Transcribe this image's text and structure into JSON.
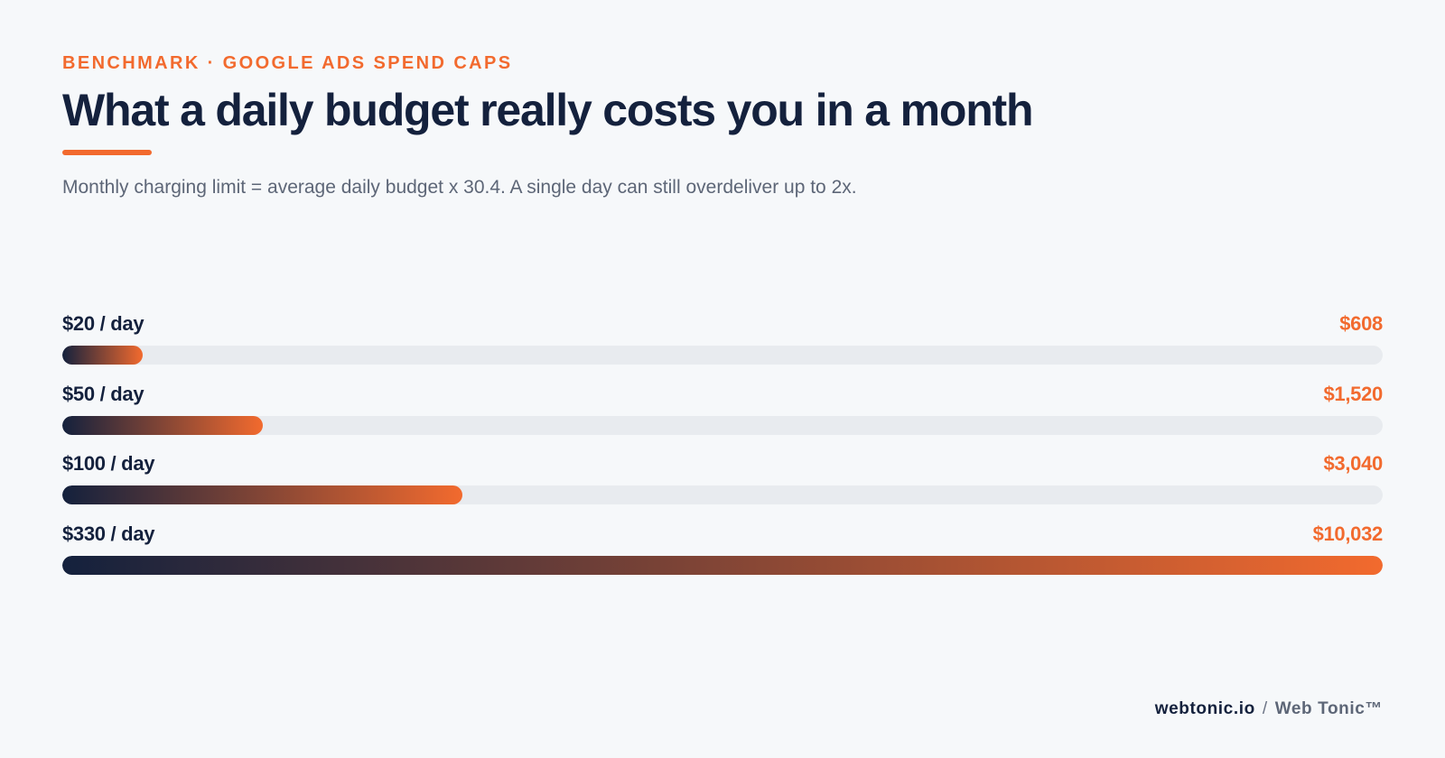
{
  "header": {
    "eyebrow": "BENCHMARK · GOOGLE ADS SPEND CAPS",
    "title": "What a daily budget really costs you in a month",
    "subtitle": "Monthly charging limit = average daily budget x 30.4. A single day can still overdeliver up to 2x."
  },
  "footer": {
    "site": "webtonic.io",
    "separator": "/",
    "brand": "Web Tonic™"
  },
  "colors": {
    "accent": "#f26a2e",
    "navy": "#14213d",
    "track": "#e8ebef",
    "background": "#f6f8fa"
  },
  "chart_data": {
    "type": "bar",
    "orientation": "horizontal",
    "categories": [
      "$20 / day",
      "$50 / day",
      "$100 / day",
      "$330 / day"
    ],
    "daily_budgets": [
      20,
      50,
      100,
      330
    ],
    "values": [
      608,
      1520,
      3040,
      10032
    ],
    "value_labels": [
      "$608",
      "$1,520",
      "$3,040",
      "$10,032"
    ],
    "xlim": [
      0,
      10032
    ],
    "grid": false,
    "legend": "none"
  }
}
